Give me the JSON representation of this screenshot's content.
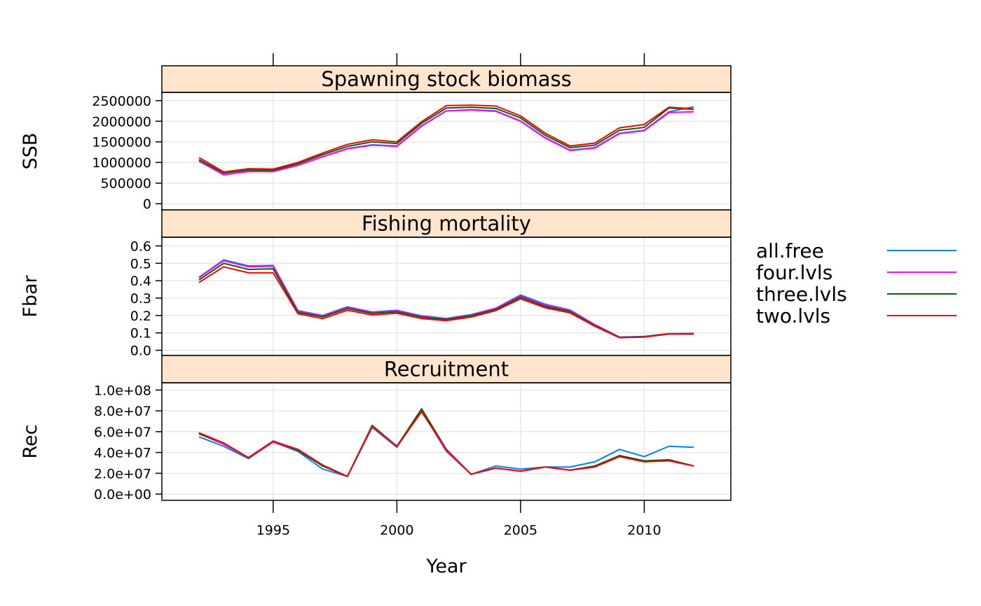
{
  "chart_data": {
    "type": "line",
    "xlabel": "Year",
    "x": [
      1992,
      1993,
      1994,
      1995,
      1996,
      1997,
      1998,
      1999,
      2000,
      2001,
      2002,
      2003,
      2004,
      2005,
      2006,
      2007,
      2008,
      2009,
      2010,
      2011,
      2012
    ],
    "xlim": [
      1990.5,
      2013.5
    ],
    "x_ticks": [
      1995,
      2000,
      2005,
      2010
    ],
    "x_tick_labels": [
      "1995",
      "2000",
      "2005",
      "2010"
    ],
    "grid": true,
    "legend_placement": "right",
    "legend": [
      {
        "name": "all.free",
        "color": "#0080ff"
      },
      {
        "name": "four.lvls",
        "color": "#ff00ff"
      },
      {
        "name": "three.lvls",
        "color": "#006400"
      },
      {
        "name": "two.lvls",
        "color": "#ff0000"
      }
    ],
    "panels": [
      {
        "strip": "Spawning stock biomass",
        "ylabel": "SSB",
        "ylim": [
          -150000,
          2700000
        ],
        "y_ticks": [
          0,
          500000,
          1000000,
          1500000,
          2000000,
          2500000
        ],
        "y_tick_labels": [
          "0",
          "500000",
          "1000000",
          "1500000",
          "2000000",
          "2500000"
        ],
        "series": [
          {
            "name": "all.free",
            "values": [
              1040000,
              700000,
              790000,
              780000,
              930000,
              1140000,
              1340000,
              1430000,
              1400000,
              1890000,
              2250000,
              2280000,
              2250000,
              2010000,
              1600000,
              1300000,
              1360000,
              1710000,
              1780000,
              2230000,
              2350000
            ]
          },
          {
            "name": "four.lvls",
            "values": [
              1030000,
              700000,
              780000,
              780000,
              930000,
              1140000,
              1330000,
              1420000,
              1390000,
              1880000,
              2250000,
              2270000,
              2240000,
              2000000,
              1590000,
              1290000,
              1350000,
              1700000,
              1770000,
              2210000,
              2230000
            ]
          },
          {
            "name": "three.lvls",
            "values": [
              1070000,
              740000,
              820000,
              810000,
              970000,
              1190000,
              1390000,
              1500000,
              1460000,
              1950000,
              2320000,
              2340000,
              2310000,
              2080000,
              1660000,
              1360000,
              1420000,
              1780000,
              1850000,
              2320000,
              2290000
            ]
          },
          {
            "name": "two.lvls",
            "values": [
              1120000,
              770000,
              850000,
              840000,
              1000000,
              1230000,
              1440000,
              1550000,
              1500000,
              1990000,
              2380000,
              2390000,
              2370000,
              2130000,
              1710000,
              1400000,
              1470000,
              1840000,
              1920000,
              2340000,
              2300000
            ]
          }
        ]
      },
      {
        "strip": "Fishing mortality",
        "ylabel": "Fbar",
        "ylim": [
          -0.03,
          0.65
        ],
        "y_ticks": [
          0.0,
          0.1,
          0.2,
          0.3,
          0.4,
          0.5,
          0.6
        ],
        "y_tick_labels": [
          "0.0",
          "0.1",
          "0.2",
          "0.3",
          "0.4",
          "0.5",
          "0.6"
        ],
        "series": [
          {
            "name": "all.free",
            "values": [
              0.42,
              0.52,
              0.485,
              0.488,
              0.228,
              0.2,
              0.25,
              0.22,
              0.23,
              0.198,
              0.183,
              0.205,
              0.242,
              0.318,
              0.265,
              0.232,
              0.148,
              0.076,
              0.08,
              0.096,
              0.097
            ]
          },
          {
            "name": "four.lvls",
            "values": [
              0.417,
              0.515,
              0.48,
              0.483,
              0.225,
              0.198,
              0.247,
              0.218,
              0.227,
              0.195,
              0.181,
              0.202,
              0.24,
              0.312,
              0.26,
              0.228,
              0.146,
              0.074,
              0.078,
              0.094,
              0.095
            ]
          },
          {
            "name": "three.lvls",
            "values": [
              0.405,
              0.5,
              0.465,
              0.468,
              0.218,
              0.192,
              0.24,
              0.212,
              0.221,
              0.19,
              0.177,
              0.198,
              0.234,
              0.305,
              0.252,
              0.222,
              0.142,
              0.073,
              0.077,
              0.093,
              0.094
            ]
          },
          {
            "name": "two.lvls",
            "values": [
              0.39,
              0.48,
              0.445,
              0.445,
              0.21,
              0.182,
              0.23,
              0.203,
              0.213,
              0.182,
              0.17,
              0.191,
              0.228,
              0.296,
              0.244,
              0.215,
              0.138,
              0.072,
              0.076,
              0.093,
              0.093
            ]
          }
        ]
      },
      {
        "strip": "Recruitment",
        "ylabel": "Rec",
        "ylim": [
          -6000000,
          107000000
        ],
        "y_ticks": [
          0,
          20000000,
          40000000,
          60000000,
          80000000,
          100000000
        ],
        "y_tick_labels": [
          "0.0e+00",
          "2.0e+07",
          "4.0e+07",
          "6.0e+07",
          "8.0e+07",
          "1.0e+08"
        ],
        "series": [
          {
            "name": "all.free",
            "values": [
              55000000,
              46000000,
              34000000,
              50000000,
              41000000,
              24000000,
              17000000,
              64000000,
              45000000,
              80000000,
              41000000,
              19000000,
              27000000,
              24000000,
              26000000,
              26000000,
              31000000,
              43000000,
              36000000,
              46000000,
              45000000
            ]
          },
          {
            "name": "four.lvls",
            "values": [
              58000000,
              48000000,
              35000000,
              50000000,
              42000000,
              27000000,
              17000000,
              65000000,
              46000000,
              80000000,
              42000000,
              19000000,
              25000000,
              22000000,
              26000000,
              23000000,
              26000000,
              37000000,
              32000000,
              32000000,
              27000000
            ]
          },
          {
            "name": "three.lvls",
            "values": [
              58000000,
              49000000,
              35000000,
              51000000,
              42000000,
              27000000,
              17000000,
              66000000,
              46000000,
              82000000,
              43000000,
              19000000,
              25000000,
              22000000,
              26000000,
              23000000,
              27000000,
              37000000,
              32000000,
              33000000,
              27000000
            ]
          },
          {
            "name": "two.lvls",
            "values": [
              59000000,
              49000000,
              35000000,
              51000000,
              43000000,
              28000000,
              17000000,
              65000000,
              46000000,
              79000000,
              43000000,
              19000000,
              25000000,
              22000000,
              26000000,
              23000000,
              26000000,
              36000000,
              31000000,
              32000000,
              27000000
            ]
          }
        ]
      }
    ]
  }
}
